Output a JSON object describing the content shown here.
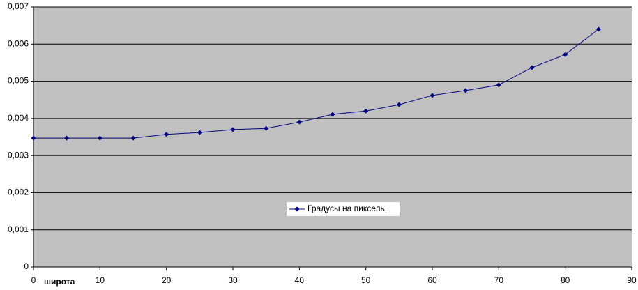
{
  "chart_data": {
    "type": "line",
    "x_label": "широта",
    "x": [
      0,
      5,
      10,
      15,
      20,
      25,
      30,
      35,
      40,
      45,
      50,
      55,
      60,
      65,
      70,
      75,
      80,
      85
    ],
    "series": [
      {
        "name": "Градусы на пиксель,",
        "color": "#000080",
        "values": [
          0.00347,
          0.00347,
          0.00347,
          0.00347,
          0.00357,
          0.00362,
          0.0037,
          0.00373,
          0.0039,
          0.00411,
          0.0042,
          0.00437,
          0.00462,
          0.00475,
          0.0049,
          0.00537,
          0.00572,
          0.0064
        ]
      }
    ],
    "xlim": [
      0,
      90
    ],
    "xticks": [
      0,
      10,
      20,
      30,
      40,
      50,
      60,
      70,
      80,
      90
    ],
    "ylim": [
      0,
      0.007
    ],
    "yticks": [
      0,
      {
        "value": 0.001,
        "label": "0,001"
      },
      {
        "value": 0.002,
        "label": "0,002"
      },
      {
        "value": 0.003,
        "label": "0,003"
      },
      {
        "value": 0.004,
        "label": "0,004"
      },
      {
        "value": 0.005,
        "label": "0,005"
      },
      {
        "value": 0.006,
        "label": "0,006"
      },
      {
        "value": 0.007,
        "label": "0,007"
      }
    ],
    "grid": true,
    "plot_background": "#c0c0c0"
  }
}
